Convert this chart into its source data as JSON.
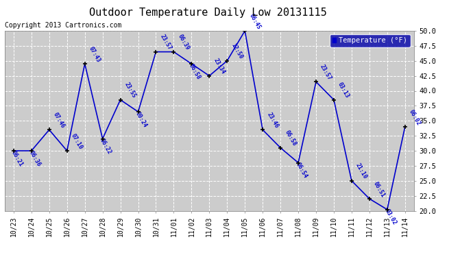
{
  "title": "Outdoor Temperature Daily Low 20131115",
  "copyright": "Copyright 2013 Cartronics.com",
  "legend_label": "Temperature (°F)",
  "ylim": [
    20.0,
    50.0
  ],
  "yticks": [
    20.0,
    22.5,
    25.0,
    27.5,
    30.0,
    32.5,
    35.0,
    37.5,
    40.0,
    42.5,
    45.0,
    47.5,
    50.0
  ],
  "line_color": "#0000cc",
  "background_color": "#ffffff",
  "plot_bg_color": "#cccccc",
  "grid_color": "#ffffff",
  "dates": [
    "10/23",
    "10/24",
    "10/25",
    "10/26",
    "10/27",
    "10/28",
    "10/29",
    "10/30",
    "10/31",
    "11/01",
    "11/02",
    "11/03",
    "11/04",
    "11/05",
    "11/06",
    "11/07",
    "11/08",
    "11/09",
    "11/10",
    "11/11",
    "11/12",
    "11/13",
    "11/14"
  ],
  "temps": [
    30.0,
    30.0,
    33.5,
    30.0,
    44.5,
    32.0,
    38.5,
    36.5,
    46.5,
    46.5,
    44.5,
    42.5,
    45.0,
    50.0,
    33.5,
    30.5,
    28.0,
    41.5,
    38.5,
    25.0,
    22.0,
    20.2,
    34.0
  ],
  "labels": [
    "06:21",
    "06:36",
    "07:46",
    "07:10",
    "07:43",
    "06:22",
    "23:55",
    "00:24",
    "23:57",
    "06:39",
    "06:58",
    "23:34",
    "12:50",
    "06:45",
    "23:46",
    "06:58",
    "06:54",
    "23:57",
    "03:13",
    "21:10",
    "06:51",
    "03:02",
    "06:02"
  ],
  "label_right": [
    false,
    false,
    true,
    true,
    true,
    false,
    true,
    false,
    true,
    true,
    false,
    true,
    true,
    true,
    true,
    true,
    false,
    true,
    true,
    true,
    true,
    false,
    true
  ]
}
